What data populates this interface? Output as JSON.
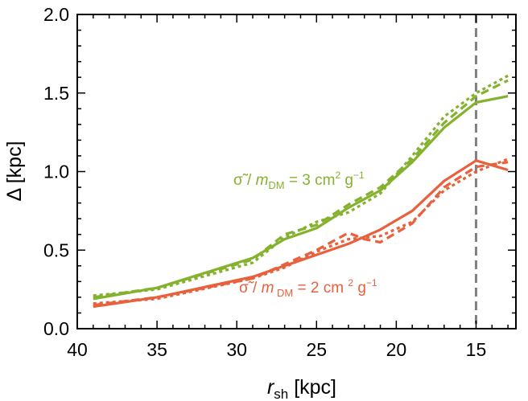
{
  "chart_data": {
    "type": "line",
    "title": "",
    "xlabel": "r_sh [kpc]",
    "xlabel_main": "r",
    "xlabel_sub": "sh",
    "xlabel_unit": " [kpc]",
    "ylabel": "Δ [kpc]",
    "xlim": [
      40,
      12.5
    ],
    "ylim": [
      0.0,
      2.0
    ],
    "x_ticks": [
      "40",
      "35",
      "30",
      "25",
      "20",
      "15"
    ],
    "y_ticks": [
      "0.0",
      "0.5",
      "1.0",
      "1.5",
      "2.0"
    ],
    "x_tick_values": [
      40,
      35,
      30,
      25,
      20,
      15
    ],
    "y_tick_values": [
      0.0,
      0.5,
      1.0,
      1.5,
      2.0
    ],
    "vline_x": 15,
    "colors": {
      "green": "#84b22e",
      "orange": "#e8603c",
      "vline": "#808080"
    },
    "series": [
      {
        "name": "green-solid",
        "group": "σ̃/m_DM = 3 cm² g⁻¹",
        "color": "#84b22e",
        "style": "solid",
        "x": [
          39,
          35,
          29,
          27,
          25,
          23,
          21,
          19,
          17,
          15,
          13
        ],
        "y": [
          0.19,
          0.26,
          0.45,
          0.57,
          0.64,
          0.77,
          0.88,
          1.06,
          1.28,
          1.44,
          1.48
        ]
      },
      {
        "name": "green-dashed",
        "group": "σ̃/m_DM = 3 cm² g⁻¹",
        "color": "#84b22e",
        "style": "dashed",
        "x": [
          39,
          35,
          29,
          27,
          25,
          23,
          21,
          19,
          17,
          15,
          13
        ],
        "y": [
          0.2,
          0.26,
          0.44,
          0.6,
          0.66,
          0.79,
          0.9,
          1.08,
          1.31,
          1.48,
          1.58
        ]
      },
      {
        "name": "green-dotted",
        "group": "σ̃/m_DM = 3 cm² g⁻¹",
        "color": "#84b22e",
        "style": "dotted",
        "x": [
          39,
          35,
          29,
          27,
          25,
          23,
          21,
          19,
          17,
          15,
          13
        ],
        "y": [
          0.21,
          0.25,
          0.42,
          0.58,
          0.68,
          0.74,
          0.86,
          1.1,
          1.35,
          1.5,
          1.61
        ]
      },
      {
        "name": "orange-solid",
        "group": "σ̃/m_DM = 2 cm² g⁻¹",
        "color": "#e8603c",
        "style": "solid",
        "x": [
          39,
          35,
          29,
          27,
          25,
          23,
          21,
          19,
          17,
          15,
          13
        ],
        "y": [
          0.14,
          0.2,
          0.33,
          0.4,
          0.47,
          0.54,
          0.63,
          0.75,
          0.94,
          1.07,
          1.01
        ]
      },
      {
        "name": "orange-dashed",
        "group": "σ̃/m_DM = 2 cm² g⁻¹",
        "color": "#e8603c",
        "style": "dashed",
        "x": [
          39,
          35,
          29,
          27,
          25,
          23,
          22,
          21,
          19,
          17,
          15,
          13
        ],
        "y": [
          0.15,
          0.2,
          0.32,
          0.41,
          0.5,
          0.61,
          0.57,
          0.55,
          0.67,
          0.9,
          1.03,
          1.06
        ]
      },
      {
        "name": "orange-dotted",
        "group": "σ̃/m_DM = 2 cm² g⁻¹",
        "color": "#e8603c",
        "style": "dotted",
        "x": [
          39,
          35,
          29,
          27,
          25,
          23,
          21,
          19,
          17,
          15,
          13
        ],
        "y": [
          0.16,
          0.19,
          0.32,
          0.39,
          0.49,
          0.57,
          0.59,
          0.68,
          0.88,
          1.0,
          1.08
        ]
      }
    ],
    "annotations": [
      {
        "id": "green",
        "prefix": "σ̃ / ",
        "var": "m",
        "sub": "DM",
        "mid": " = 3 cm",
        "sup1": "2",
        "g": " g",
        "sup2": "−1",
        "color": "#84b22e"
      },
      {
        "id": "orange",
        "prefix": "σ̃ / ",
        "var": "m",
        "sub": " DM",
        "mid": " = 2 cm ",
        "sup1": "2",
        "g": " g",
        "sup2": "−1",
        "color": "#e8603c"
      }
    ]
  }
}
